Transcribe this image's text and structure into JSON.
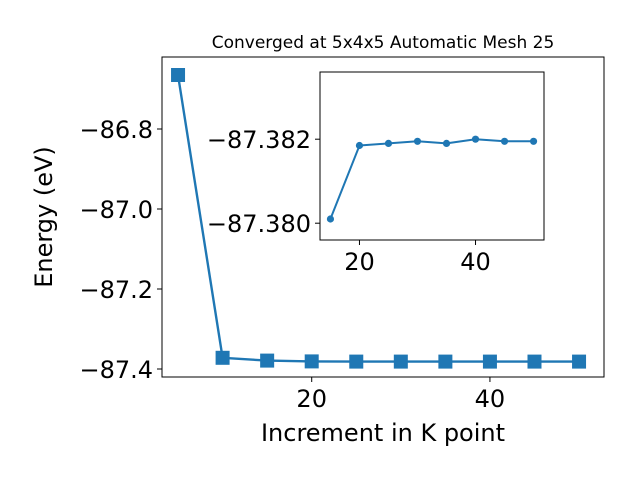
{
  "chart_data": [
    {
      "type": "line",
      "title": "Converged at 5x4x5 Automatic Mesh 25",
      "xlabel": "Increment in K point",
      "ylabel": "Energy (eV)",
      "xlim": [
        3.2,
        52.8
      ],
      "ylim": [
        -87.42,
        -86.62
      ],
      "xticks": [
        20,
        40
      ],
      "yticks": [
        -87.4,
        -87.2,
        -87.0,
        -86.8
      ],
      "ytick_labels": [
        "−87.4",
        "−87.2",
        "−87.0",
        "−86.8"
      ],
      "grid": false,
      "marker": "square",
      "color": "#1f77b4",
      "series": [
        {
          "x": [
            5,
            10,
            15,
            20,
            25,
            30,
            35,
            40,
            45,
            50
          ],
          "values": [
            -86.665,
            -87.372,
            -87.379,
            -87.381,
            -87.3815,
            -87.3815,
            -87.3815,
            -87.3815,
            -87.3815,
            -87.3815
          ]
        }
      ]
    },
    {
      "type": "line",
      "title": "",
      "xlabel": "",
      "ylabel": "",
      "xlim": [
        13.2,
        51.8
      ],
      "ylim": [
        -87.3796,
        -87.3836
      ],
      "xticks": [
        20,
        40
      ],
      "yticks": [
        -87.38,
        -87.382
      ],
      "ytick_labels": [
        "−87.380",
        "−87.382"
      ],
      "grid": false,
      "marker": "circle",
      "color": "#1f77b4",
      "series": [
        {
          "x": [
            15,
            20,
            25,
            30,
            35,
            40,
            45,
            50
          ],
          "values": [
            -87.3801,
            -87.38185,
            -87.3819,
            -87.38195,
            -87.3819,
            -87.382,
            -87.38195,
            -87.38195
          ]
        }
      ]
    }
  ]
}
